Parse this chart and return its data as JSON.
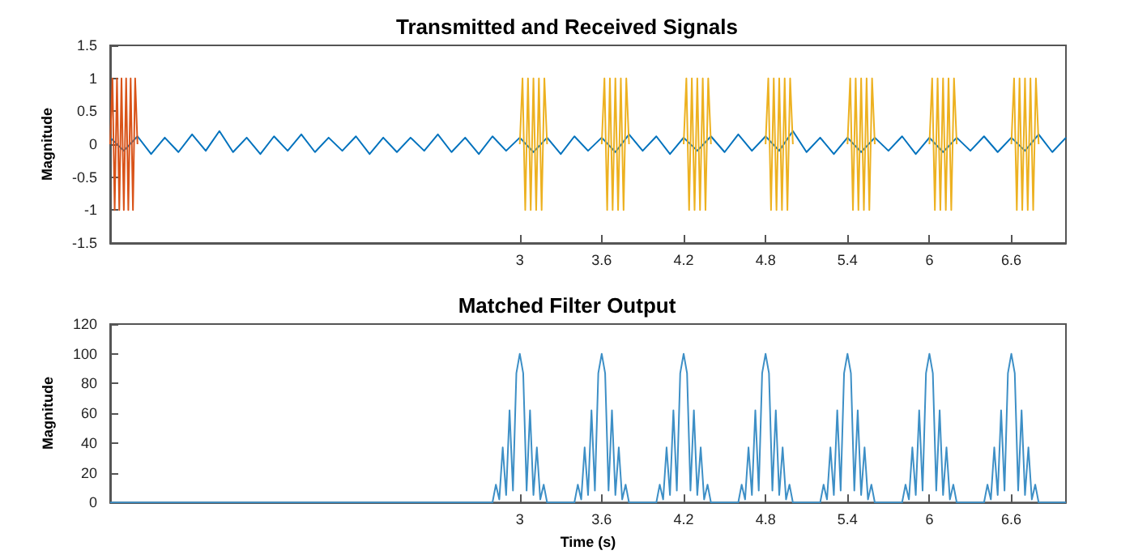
{
  "chart_data": [
    {
      "type": "line",
      "title": "Transmitted and Received Signals",
      "ylabel": "Magnitude",
      "marker": "none",
      "xlim": [
        0,
        7
      ],
      "xticks": [
        3,
        3.6,
        4.2,
        4.8,
        5.4,
        6,
        6.6
      ],
      "ylim": [
        -1.5,
        1.5
      ],
      "yticks": [
        -1.5,
        -1,
        -0.5,
        0,
        0.5,
        1,
        1.5
      ],
      "series": [
        {
          "color": "#0072bd",
          "x": [
            0,
            0.1,
            0.2,
            0.3,
            0.4,
            0.5,
            0.6,
            0.7,
            0.8,
            0.9,
            1,
            1.1,
            1.2,
            1.3,
            1.4,
            1.5,
            1.6,
            1.7,
            1.8,
            1.9,
            2,
            2.1,
            2.2,
            2.3,
            2.4,
            2.5,
            2.6,
            2.7,
            2.8,
            2.9,
            3,
            3.1,
            3.2,
            3.3,
            3.4,
            3.5,
            3.6,
            3.7,
            3.8,
            3.9,
            4,
            4.1,
            4.2,
            4.3,
            4.4,
            4.5,
            4.6,
            4.7,
            4.8,
            4.9,
            5,
            5.1,
            5.2,
            5.3,
            5.4,
            5.5,
            5.6,
            5.7,
            5.8,
            5.9,
            6,
            6.1,
            6.2,
            6.3,
            6.4,
            6.5,
            6.6,
            6.7,
            6.8,
            6.9,
            7
          ],
          "values": [
            0.1,
            -0.1,
            0.12,
            -0.15,
            0.1,
            -0.12,
            0.15,
            -0.1,
            0.2,
            -0.12,
            0.1,
            -0.15,
            0.12,
            -0.1,
            0.15,
            -0.12,
            0.1,
            -0.1,
            0.12,
            -0.15,
            0.1,
            -0.12,
            0.1,
            -0.1,
            0.15,
            -0.12,
            0.1,
            -0.15,
            0.12,
            -0.1,
            0.1,
            -0.12,
            0.1,
            -0.15,
            0.12,
            -0.1,
            0.1,
            -0.12,
            0.15,
            -0.1,
            0.12,
            -0.15,
            0.1,
            -0.1,
            0.12,
            -0.12,
            0.15,
            -0.1,
            0.12,
            -0.1,
            0.2,
            -0.12,
            0.1,
            -0.15,
            0.1,
            -0.12,
            0.1,
            -0.1,
            0.12,
            -0.15,
            0.1,
            -0.12,
            0.1,
            -0.1,
            0.12,
            -0.12,
            0.1,
            -0.1,
            0.15,
            -0.12,
            0.1
          ]
        },
        {
          "color": "#d95319",
          "x": [
            0,
            0.017,
            0.033,
            0.05,
            0.067,
            0.083,
            0.1,
            0.117,
            0.133,
            0.15,
            0.167,
            0.183,
            0.2
          ],
          "values": [
            0,
            1,
            -1,
            1,
            -1,
            1,
            -1,
            1,
            -1,
            1,
            -1,
            1,
            0
          ]
        },
        {
          "color": "#edb120",
          "x": [
            3,
            3.02,
            3.04,
            3.06,
            3.08,
            3.1,
            3.12,
            3.14,
            3.16,
            3.18,
            3.2,
            3.3,
            3.6,
            3.62,
            3.64,
            3.66,
            3.68,
            3.7,
            3.72,
            3.74,
            3.76,
            3.78,
            3.8,
            3.9,
            4.2,
            4.22,
            4.24,
            4.26,
            4.28,
            4.3,
            4.32,
            4.34,
            4.36,
            4.38,
            4.4,
            4.5,
            4.8,
            4.82,
            4.84,
            4.86,
            4.88,
            4.9,
            4.92,
            4.94,
            4.96,
            4.98,
            5,
            5.1,
            5.4,
            5.42,
            5.44,
            5.46,
            5.48,
            5.5,
            5.52,
            5.54,
            5.56,
            5.58,
            5.6,
            5.7,
            6,
            6.02,
            6.04,
            6.06,
            6.08,
            6.1,
            6.12,
            6.14,
            6.16,
            6.18,
            6.2,
            6.3,
            6.6,
            6.62,
            6.64,
            6.66,
            6.68,
            6.7,
            6.72,
            6.74,
            6.76,
            6.78,
            6.8
          ],
          "values": [
            0,
            1,
            -1,
            1,
            -1,
            1,
            -1,
            1,
            -1,
            1,
            0,
            null,
            0,
            1,
            -1,
            1,
            -1,
            1,
            -1,
            1,
            -1,
            1,
            0,
            null,
            0,
            1,
            -1,
            1,
            -1,
            1,
            -1,
            1,
            -1,
            1,
            0,
            null,
            0,
            1,
            -1,
            1,
            -1,
            1,
            -1,
            1,
            -1,
            1,
            0,
            null,
            0,
            1,
            -1,
            1,
            -1,
            1,
            -1,
            1,
            -1,
            1,
            0,
            null,
            0,
            1,
            -1,
            1,
            -1,
            1,
            -1,
            1,
            -1,
            1,
            0,
            null,
            0,
            1,
            -1,
            1,
            -1,
            1,
            -1,
            1,
            -1,
            1,
            0
          ]
        }
      ]
    },
    {
      "type": "line",
      "title": "Matched Filter Output",
      "xlabel": "Time (s)",
      "ylabel": "Magnitude",
      "marker": "none",
      "xlim": [
        0,
        7
      ],
      "xticks": [
        3,
        3.6,
        4.2,
        4.8,
        5.4,
        6,
        6.6
      ],
      "ylim": [
        0,
        120
      ],
      "yticks": [
        0,
        20,
        40,
        60,
        80,
        100,
        120
      ],
      "series": [
        {
          "color": "#3d8fc6",
          "x": [
            0,
            2.8,
            2.825,
            2.85,
            2.875,
            2.9,
            2.925,
            2.95,
            2.975,
            3,
            3.025,
            3.05,
            3.075,
            3.1,
            3.125,
            3.15,
            3.175,
            3.2,
            3.4,
            3.425,
            3.45,
            3.475,
            3.5,
            3.525,
            3.55,
            3.575,
            3.6,
            3.625,
            3.65,
            3.675,
            3.7,
            3.725,
            3.75,
            3.775,
            3.8,
            4,
            4.025,
            4.05,
            4.075,
            4.1,
            4.125,
            4.15,
            4.175,
            4.2,
            4.225,
            4.25,
            4.275,
            4.3,
            4.325,
            4.35,
            4.375,
            4.4,
            4.6,
            4.625,
            4.65,
            4.675,
            4.7,
            4.725,
            4.75,
            4.775,
            4.8,
            4.825,
            4.85,
            4.875,
            4.9,
            4.925,
            4.95,
            4.975,
            5,
            5.2,
            5.225,
            5.25,
            5.275,
            5.3,
            5.325,
            5.35,
            5.375,
            5.4,
            5.425,
            5.45,
            5.475,
            5.5,
            5.525,
            5.55,
            5.575,
            5.6,
            5.8,
            5.825,
            5.85,
            5.875,
            5.9,
            5.925,
            5.95,
            5.975,
            6,
            6.025,
            6.05,
            6.075,
            6.1,
            6.125,
            6.15,
            6.175,
            6.2,
            6.4,
            6.425,
            6.45,
            6.475,
            6.5,
            6.525,
            6.55,
            6.575,
            6.6,
            6.625,
            6.65,
            6.675,
            6.7,
            6.725,
            6.75,
            6.775,
            6.8,
            7
          ],
          "values": [
            0,
            0,
            12,
            2,
            37,
            5,
            62,
            8,
            87,
            100,
            87,
            8,
            62,
            5,
            37,
            2,
            12,
            0,
            0,
            12,
            2,
            37,
            5,
            62,
            8,
            87,
            100,
            87,
            8,
            62,
            5,
            37,
            2,
            12,
            0,
            0,
            12,
            2,
            37,
            5,
            62,
            8,
            87,
            100,
            87,
            8,
            62,
            5,
            37,
            2,
            12,
            0,
            0,
            12,
            2,
            37,
            5,
            62,
            8,
            87,
            100,
            87,
            8,
            62,
            5,
            37,
            2,
            12,
            0,
            0,
            12,
            2,
            37,
            5,
            62,
            8,
            87,
            100,
            87,
            8,
            62,
            5,
            37,
            2,
            12,
            0,
            0,
            12,
            2,
            37,
            5,
            62,
            8,
            87,
            100,
            87,
            8,
            62,
            5,
            37,
            2,
            12,
            0,
            0,
            12,
            2,
            37,
            5,
            62,
            8,
            87,
            100,
            87,
            8,
            62,
            5,
            37,
            2,
            12,
            0,
            0
          ]
        }
      ]
    }
  ]
}
